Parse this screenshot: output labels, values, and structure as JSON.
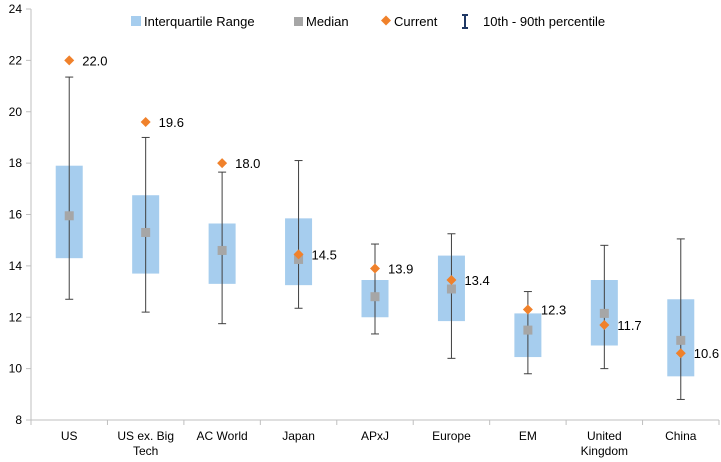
{
  "chart_data": {
    "type": "box",
    "title": "",
    "xlabel": "",
    "ylabel": "",
    "ylim": [
      8,
      24
    ],
    "yticks": [
      8,
      10,
      12,
      14,
      16,
      18,
      20,
      22,
      24
    ],
    "grid": false,
    "legend": {
      "position": "top",
      "items": [
        {
          "key": "iqr",
          "label": "Interquartile Range"
        },
        {
          "key": "median",
          "label": "Median"
        },
        {
          "key": "current",
          "label": "Current"
        },
        {
          "key": "range",
          "label": "10th - 90th percentile"
        }
      ]
    },
    "colors": {
      "iqr": "#a6cdee",
      "median": "#a6a6a6",
      "current": "#f0812b",
      "whisker": "#404040",
      "range_icon": "#1f3864",
      "axis": "#bfbfbf"
    },
    "categories": [
      {
        "label": [
          "US"
        ],
        "p10": 12.7,
        "q1": 14.3,
        "median": 15.95,
        "q3": 17.9,
        "p90": 21.35,
        "current": 22.0,
        "current_label": "22.0"
      },
      {
        "label": [
          "US ex. Big",
          "Tech"
        ],
        "p10": 12.2,
        "q1": 13.7,
        "median": 15.3,
        "q3": 16.75,
        "p90": 19.0,
        "current": 19.6,
        "current_label": "19.6"
      },
      {
        "label": [
          "AC World"
        ],
        "p10": 11.75,
        "q1": 13.3,
        "median": 14.6,
        "q3": 15.65,
        "p90": 17.65,
        "current": 18.0,
        "current_label": "18.0"
      },
      {
        "label": [
          "Japan"
        ],
        "p10": 12.35,
        "q1": 13.25,
        "median": 14.25,
        "q3": 15.85,
        "p90": 18.1,
        "current": 14.45,
        "current_label": "14.5"
      },
      {
        "label": [
          "APxJ"
        ],
        "p10": 11.35,
        "q1": 12.0,
        "median": 12.8,
        "q3": 13.45,
        "p90": 14.85,
        "current": 13.9,
        "current_label": "13.9"
      },
      {
        "label": [
          "Europe"
        ],
        "p10": 10.4,
        "q1": 11.85,
        "median": 13.1,
        "q3": 14.4,
        "p90": 15.25,
        "current": 13.45,
        "current_label": "13.4"
      },
      {
        "label": [
          "EM"
        ],
        "p10": 9.8,
        "q1": 10.45,
        "median": 11.5,
        "q3": 12.15,
        "p90": 13.0,
        "current": 12.3,
        "current_label": "12.3"
      },
      {
        "label": [
          "United",
          "Kingdom"
        ],
        "p10": 10.0,
        "q1": 10.9,
        "median": 12.15,
        "q3": 13.45,
        "p90": 14.8,
        "current": 11.7,
        "current_label": "11.7"
      },
      {
        "label": [
          "China"
        ],
        "p10": 8.8,
        "q1": 9.7,
        "median": 11.1,
        "q3": 12.7,
        "p90": 15.05,
        "current": 10.6,
        "current_label": "10.6"
      }
    ]
  }
}
